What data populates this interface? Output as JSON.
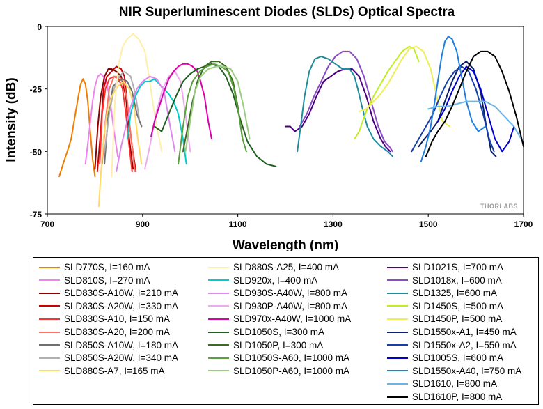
{
  "chart_data": {
    "type": "line",
    "title": "NIR Superluminescent Diodes (SLDs) Optical Spectra",
    "xlabel": "Wavelength (nm)",
    "ylabel": "Intensity (dB)",
    "xlim": [
      700,
      1700
    ],
    "ylim": [
      -75,
      0
    ],
    "x_ticks": [
      700,
      900,
      1100,
      1300,
      1500,
      1700
    ],
    "y_ticks": [
      0,
      -25,
      -50,
      -75
    ],
    "grid": false,
    "legend_position": "bottom",
    "watermark": "THORLABS",
    "series": [
      {
        "name": "SLD770S, I=160 mA",
        "color": "#f07c00",
        "x": [
          725,
          733,
          742,
          750,
          757,
          765,
          770,
          775,
          780,
          785,
          790,
          795,
          800
        ],
        "y": [
          -60,
          -55,
          -50,
          -45,
          -37,
          -28,
          -23,
          -21,
          -23,
          -30,
          -42,
          -53,
          -60
        ]
      },
      {
        "name": "SLD810S, I=270 mA",
        "color": "#ee82ee",
        "x": [
          780,
          788,
          795,
          800,
          806,
          812,
          818,
          825,
          832,
          840,
          848
        ],
        "y": [
          -55,
          -42,
          -30,
          -24,
          -20,
          -19,
          -20,
          -23,
          -30,
          -42,
          -52
        ]
      },
      {
        "name": "SLD830S-A10W, I=210 mA",
        "color": "#8b0000",
        "x": [
          800,
          806,
          812,
          820,
          828,
          835,
          845,
          855,
          865,
          872,
          880
        ],
        "y": [
          -57,
          -40,
          -28,
          -20,
          -17,
          -17,
          -18,
          -20,
          -28,
          -45,
          -57
        ]
      },
      {
        "name": "SLD830S-A20W, I=330 mA",
        "color": "#cc0000",
        "x": [
          805,
          812,
          818,
          825,
          835,
          845,
          855,
          862,
          870,
          878,
          886
        ],
        "y": [
          -58,
          -42,
          -25,
          -20,
          -18,
          -16,
          -17,
          -20,
          -35,
          -48,
          -58
        ]
      },
      {
        "name": "SLD830S-A10, I=150 mA",
        "color": "#ff3030",
        "x": [
          810,
          815,
          822,
          830,
          840,
          850,
          858,
          865,
          872,
          878
        ],
        "y": [
          -55,
          -35,
          -25,
          -21,
          -20,
          -21,
          -25,
          -35,
          -48,
          -58
        ]
      },
      {
        "name": "SLD830S-A20, I=200 mA",
        "color": "#ff7060",
        "x": [
          815,
          822,
          830,
          840,
          850,
          860,
          868,
          876,
          884
        ],
        "y": [
          -55,
          -38,
          -25,
          -20,
          -20,
          -22,
          -30,
          -45,
          -58
        ]
      },
      {
        "name": "SLD850S-A10W, I=180 mA",
        "color": "#707070",
        "x": [
          820,
          828,
          838,
          848,
          858,
          868,
          878,
          888,
          898
        ],
        "y": [
          -55,
          -35,
          -24,
          -22,
          -21,
          -22,
          -26,
          -35,
          -40
        ]
      },
      {
        "name": "SLD850S-A20W, I=340 mA",
        "color": "#b0b0b0",
        "x": [
          820,
          830,
          840,
          850,
          862,
          875,
          885,
          893
        ],
        "y": [
          -50,
          -35,
          -25,
          -20,
          -18,
          -20,
          -27,
          -37
        ]
      },
      {
        "name": "SLD880S-A7, I=165 mA",
        "color": "#ffd966",
        "x": [
          808,
          812,
          818,
          825,
          835,
          848,
          860,
          872,
          882,
          890,
          898
        ],
        "y": [
          -72,
          -60,
          -45,
          -35,
          -28,
          -24,
          -22,
          -25,
          -32,
          -45,
          -55
        ]
      },
      {
        "name": "SLD880S-A25, I=400 mA",
        "color": "#ffeeaa",
        "x": [
          835,
          842,
          850,
          858,
          868,
          880,
          892,
          905,
          915,
          925,
          933,
          940
        ],
        "y": [
          -60,
          -30,
          -15,
          -8,
          -5,
          -3,
          -5,
          -10,
          -22,
          -35,
          -43,
          -50
        ]
      },
      {
        "name": "SLD920x, I=400 mA",
        "color": "#00cccc",
        "x": [
          868,
          875,
          885,
          895,
          905,
          915,
          925,
          935,
          945,
          955,
          965,
          975,
          985,
          992
        ],
        "y": [
          -45,
          -35,
          -28,
          -24,
          -22,
          -22,
          -21,
          -23,
          -25,
          -27,
          -30,
          -35,
          -45,
          -55
        ]
      },
      {
        "name": "SLD930S-A40W, I=800 mA",
        "color": "#dd88ee",
        "x": [
          845,
          855,
          865,
          875,
          888,
          900,
          915,
          930,
          945,
          958,
          968
        ],
        "y": [
          -58,
          -48,
          -40,
          -32,
          -25,
          -22,
          -20,
          -21,
          -26,
          -40,
          -50
        ]
      },
      {
        "name": "SLD930P-A40W, I=800 mA",
        "color": "#eeaaee",
        "x": [
          905,
          915,
          928,
          942,
          955,
          968,
          980,
          990,
          1000
        ],
        "y": [
          -57,
          -48,
          -35,
          -25,
          -20,
          -18,
          -22,
          -35,
          -50
        ]
      },
      {
        "name": "SLD970x-A40W, I=1000 mA",
        "color": "#dd00aa",
        "x": [
          918,
          925,
          935,
          945,
          955,
          965,
          975,
          985,
          995,
          1005,
          1015,
          1022,
          1030,
          1038,
          1045
        ],
        "y": [
          -44,
          -38,
          -32,
          -26,
          -21,
          -18,
          -16,
          -15,
          -15,
          -16,
          -18,
          -22,
          -28,
          -38,
          -45
        ]
      },
      {
        "name": "SLD1050S, I=300 mA",
        "color": "#1f5d1f",
        "x": [
          925,
          940,
          955,
          970,
          985,
          1000,
          1015,
          1030,
          1045,
          1060,
          1075,
          1090,
          1105,
          1120,
          1140,
          1160,
          1180
        ],
        "y": [
          -40,
          -42,
          -35,
          -28,
          -22,
          -19,
          -17,
          -16,
          -15,
          -16,
          -20,
          -27,
          -37,
          -46,
          -52,
          -55,
          -56
        ]
      },
      {
        "name": "SLD1050P, I=300 mA",
        "color": "#3a6b1f",
        "x": [
          985,
          995,
          1005,
          1015,
          1030,
          1045,
          1060,
          1075,
          1090,
          1100,
          1110
        ],
        "y": [
          -50,
          -40,
          -30,
          -22,
          -16,
          -14,
          -14,
          -16,
          -22,
          -32,
          -45
        ]
      },
      {
        "name": "SLD1050S-A60, I=1000 mA",
        "color": "#5aa03c",
        "x": [
          975,
          985,
          995,
          1005,
          1020,
          1035,
          1050,
          1065,
          1080,
          1092,
          1102,
          1110,
          1118
        ],
        "y": [
          -55,
          -40,
          -28,
          -22,
          -18,
          -16,
          -15,
          -16,
          -18,
          -25,
          -35,
          -45,
          -50
        ]
      },
      {
        "name": "SLD1050P-A60, I=1000 mA",
        "color": "#9acd80",
        "x": [
          990,
          1000,
          1010,
          1022,
          1038,
          1055,
          1070,
          1085,
          1100,
          1112,
          1125
        ],
        "y": [
          -50,
          -38,
          -26,
          -20,
          -17,
          -16,
          -16,
          -17,
          -22,
          -32,
          -45
        ]
      },
      {
        "name": "SLD1021S, I=700 mA",
        "color": "#4b0082",
        "x": [
          1200,
          1210,
          1220,
          1235,
          1250,
          1265,
          1280,
          1295,
          1310,
          1325,
          1340,
          1355,
          1370,
          1385,
          1400,
          1410,
          1420
        ],
        "y": [
          -40,
          -40,
          -42,
          -40,
          -35,
          -28,
          -22,
          -20,
          -18,
          -17,
          -17,
          -20,
          -28,
          -38,
          -45,
          -48,
          -50
        ]
      },
      {
        "name": "SLD1018x, I=600 mA",
        "color": "#8a4cc4",
        "x": [
          1230,
          1245,
          1260,
          1275,
          1290,
          1305,
          1320,
          1335,
          1350,
          1365,
          1380,
          1395,
          1408,
          1418,
          1425
        ],
        "y": [
          -40,
          -35,
          -28,
          -22,
          -16,
          -12,
          -10,
          -10,
          -13,
          -20,
          -30,
          -40,
          -46,
          -48,
          -50
        ]
      },
      {
        "name": "SLD1325, I=600 mA",
        "color": "#1f8c9c",
        "x": [
          1225,
          1232,
          1240,
          1250,
          1262,
          1275,
          1290,
          1305,
          1320,
          1335,
          1345,
          1352,
          1362,
          1372,
          1385,
          1400,
          1415,
          1425
        ],
        "y": [
          -50,
          -40,
          -28,
          -18,
          -13,
          -12,
          -13,
          -15,
          -17,
          -17,
          -20,
          -25,
          -33,
          -40,
          -45,
          -48,
          -50,
          -52
        ]
      },
      {
        "name": "SLD1450S, I=500 mA",
        "color": "#bfee20",
        "x": [
          1345,
          1355,
          1362,
          1372,
          1385,
          1400,
          1415,
          1430,
          1445,
          1460,
          1470,
          1480
        ],
        "y": [
          -45,
          -42,
          -38,
          -33,
          -28,
          -23,
          -18,
          -14,
          -10,
          -8,
          -9,
          -14
        ]
      },
      {
        "name": "SLD1450P, I=500 mA",
        "color": "#eeee55",
        "x": [
          1355,
          1370,
          1385,
          1400,
          1415,
          1430,
          1445,
          1460,
          1475,
          1490,
          1505,
          1518,
          1530,
          1545
        ],
        "y": [
          -34,
          -33,
          -30,
          -27,
          -23,
          -18,
          -13,
          -9,
          -8,
          -10,
          -17,
          -28,
          -38,
          -40
        ]
      },
      {
        "name": "SLD1550x-A1, I=450 mA",
        "color": "#0a1e6e",
        "x": [
          1480,
          1492,
          1505,
          1520,
          1535,
          1550,
          1565,
          1580,
          1595,
          1610,
          1622,
          1632,
          1642
        ],
        "y": [
          -48,
          -45,
          -42,
          -38,
          -30,
          -22,
          -16,
          -14,
          -17,
          -26,
          -40,
          -50,
          -52
        ]
      },
      {
        "name": "SLD1550x-A2, I=550 mA",
        "color": "#1540aa",
        "x": [
          1465,
          1480,
          1495,
          1510,
          1525,
          1540,
          1555,
          1570,
          1585,
          1600,
          1615,
          1628,
          1638
        ],
        "y": [
          -50,
          -45,
          -40,
          -35,
          -28,
          -22,
          -18,
          -16,
          -18,
          -25,
          -35,
          -45,
          -50
        ]
      },
      {
        "name": "SLD1005S, I=600 mA",
        "color": "#0000cc",
        "x": [
          1520,
          1535,
          1550,
          1565,
          1580,
          1595,
          1610,
          1625,
          1640,
          1655,
          1670,
          1680
        ],
        "y": [
          -38,
          -33,
          -26,
          -20,
          -16,
          -18,
          -25,
          -35,
          -45,
          -50,
          -46,
          -40
        ]
      },
      {
        "name": "SLD1550x-A40, I=750 mA",
        "color": "#1f7fe0",
        "x": [
          1485,
          1495,
          1505,
          1512,
          1520,
          1528,
          1535,
          1542,
          1550,
          1560,
          1570,
          1580,
          1592,
          1605,
          1620
        ],
        "y": [
          -54,
          -48,
          -40,
          -32,
          -22,
          -12,
          -6,
          -4,
          -5,
          -10,
          -20,
          -30,
          -38,
          -42,
          -40
        ]
      },
      {
        "name": "SLD1610, I=800 mA",
        "color": "#6ab4e8",
        "x": [
          1500,
          1520,
          1540,
          1560,
          1580,
          1600,
          1620,
          1640,
          1660,
          1680,
          1695
        ],
        "y": [
          -33,
          -32,
          -32,
          -31,
          -30,
          -30,
          -30,
          -32,
          -36,
          -40,
          -45
        ]
      },
      {
        "name": "SLD1610P, I=800 mA",
        "color": "#000000",
        "x": [
          1495,
          1508,
          1520,
          1535,
          1550,
          1565,
          1580,
          1595,
          1610,
          1625,
          1640,
          1655,
          1670,
          1685,
          1700
        ],
        "y": [
          -52,
          -46,
          -42,
          -38,
          -32,
          -25,
          -18,
          -12,
          -10,
          -10,
          -12,
          -18,
          -26,
          -36,
          -48
        ]
      }
    ]
  }
}
